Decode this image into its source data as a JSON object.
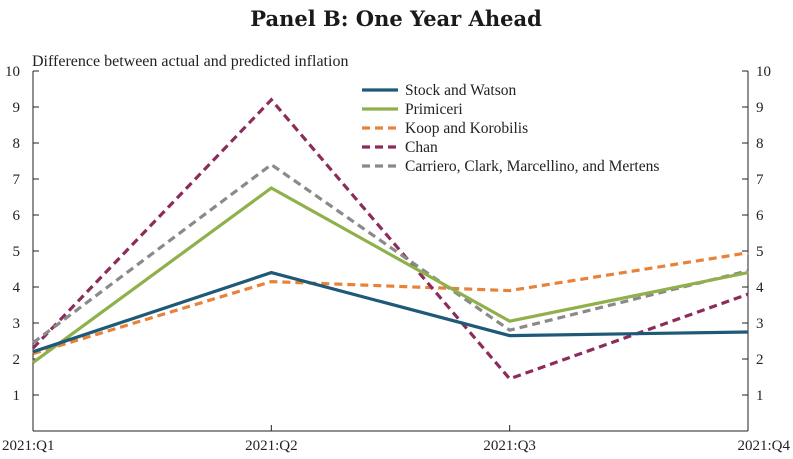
{
  "chart_data": {
    "type": "line",
    "title": "Panel B: One Year Ahead",
    "ylabel": "Difference between actual and predicted inflation",
    "xlabel": "",
    "categories": [
      "2021:Q1",
      "2021:Q2",
      "2021:Q3",
      "2021:Q4"
    ],
    "ylim": [
      0,
      10
    ],
    "yticks": [
      1,
      2,
      3,
      4,
      5,
      6,
      7,
      8,
      9,
      10
    ],
    "yticks_right": [
      1,
      2,
      3,
      4,
      5,
      6,
      7,
      8,
      9,
      10
    ],
    "grid": false,
    "legend_position": "top-right",
    "series": [
      {
        "name": "Stock and Watson",
        "values": [
          2.2,
          4.4,
          2.65,
          2.75
        ],
        "color": "#1e5a78",
        "style": "solid"
      },
      {
        "name": "Primiceri",
        "values": [
          1.9,
          6.75,
          3.05,
          4.4
        ],
        "color": "#8fb04a",
        "style": "solid"
      },
      {
        "name": "Koop and Korobilis",
        "values": [
          2.15,
          4.15,
          3.9,
          4.95
        ],
        "color": "#e8823a",
        "style": "dashed"
      },
      {
        "name": "Chan",
        "values": [
          2.3,
          9.2,
          1.45,
          3.8
        ],
        "color": "#8c2c5a",
        "style": "dashed"
      },
      {
        "name": "Carriero, Clark, Marcellino, and Mertens",
        "values": [
          2.45,
          7.4,
          2.8,
          4.45
        ],
        "color": "#8a8a8a",
        "style": "dashed"
      }
    ]
  }
}
